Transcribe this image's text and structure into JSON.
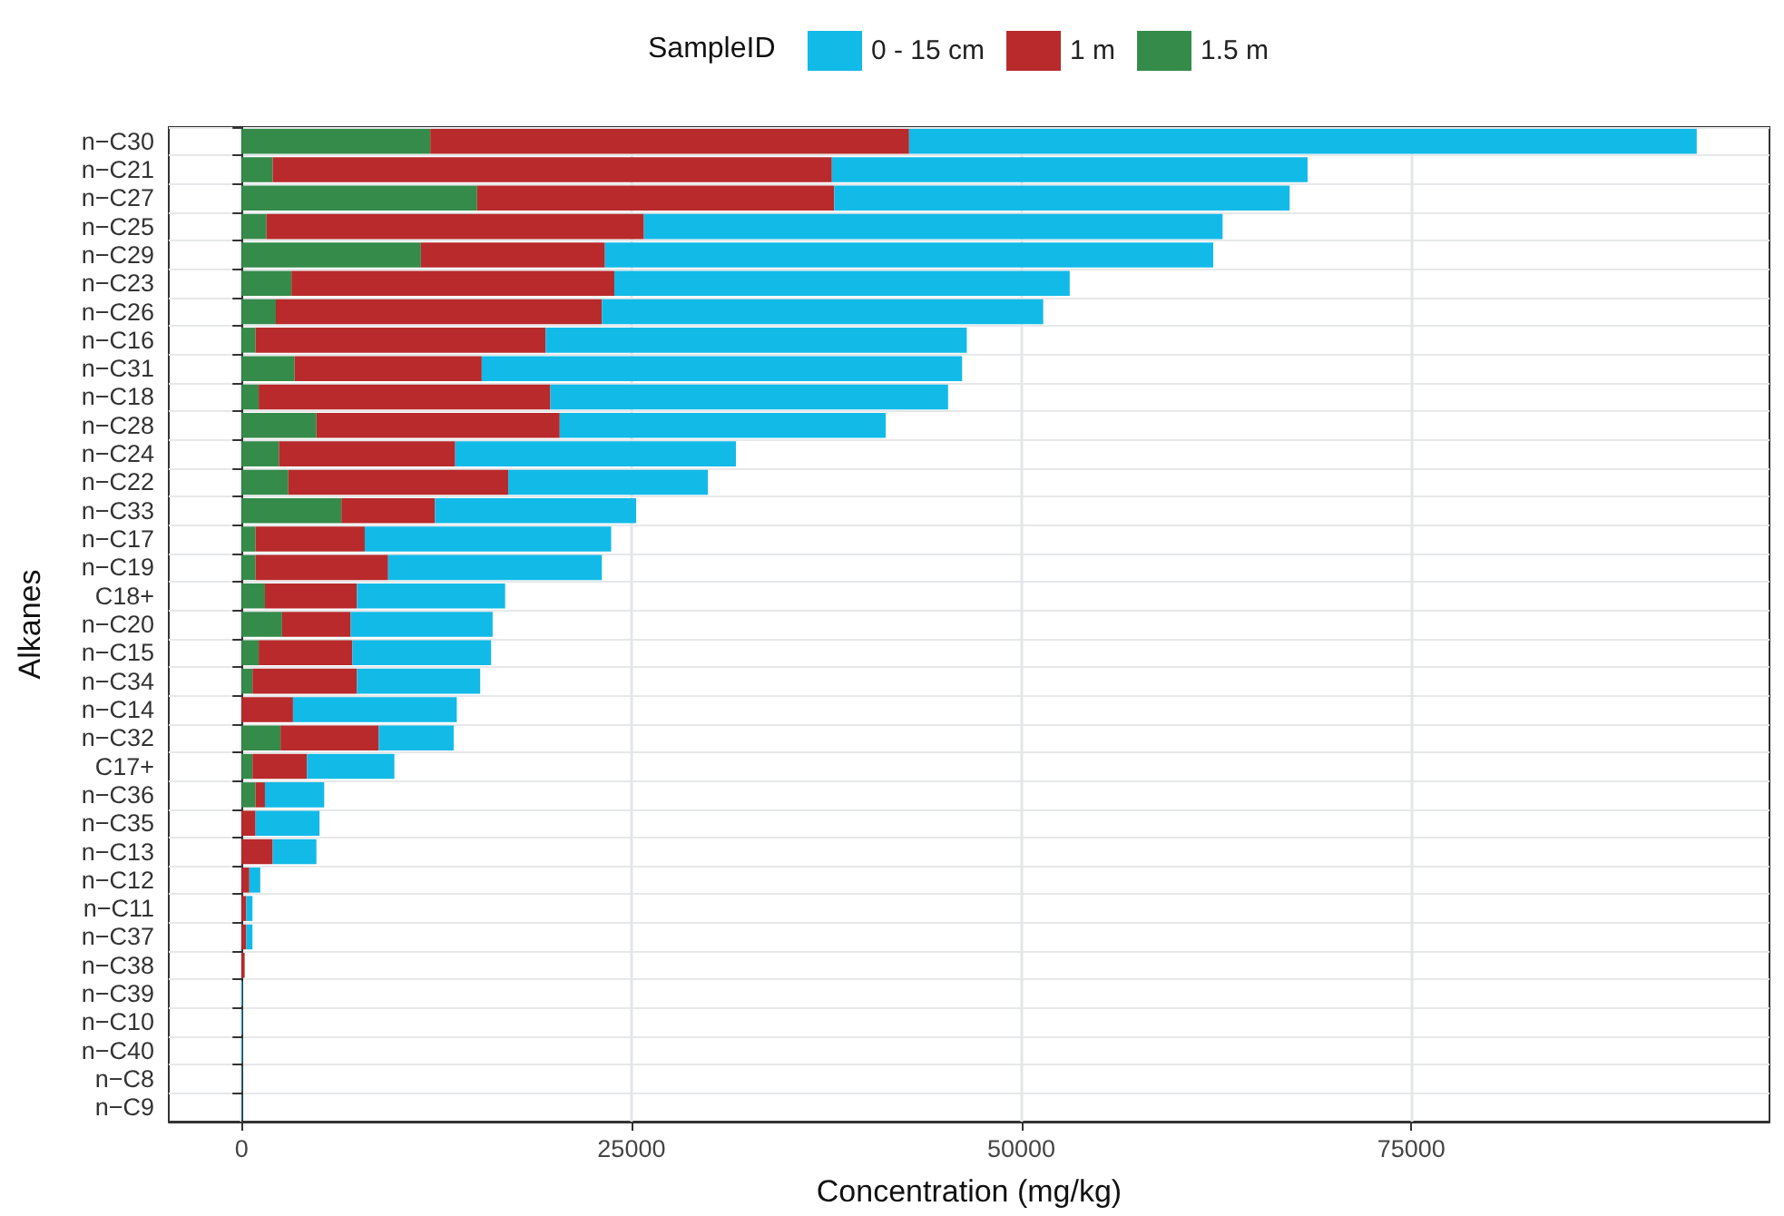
{
  "chart_data": {
    "type": "bar",
    "orientation": "horizontal",
    "stacked": true,
    "xlabel": "Concentration (mg/kg)",
    "ylabel": "Alkanes",
    "legend_title": "SampleID",
    "legend": "top",
    "grid": true,
    "categories": [
      "n−C30",
      "n−C21",
      "n−C27",
      "n−C25",
      "n−C29",
      "n−C23",
      "n−C26",
      "n−C16",
      "n−C31",
      "n−C18",
      "n−C28",
      "n−C24",
      "n−C22",
      "n−C33",
      "n−C17",
      "n−C19",
      "C18+",
      "n−C20",
      "n−C15",
      "n−C34",
      "n−C14",
      "n−C32",
      "C17+",
      "n−C36",
      "n−C35",
      "n−C13",
      "n−C12",
      "n−C11",
      "n−C37",
      "n−C38",
      "n−C39",
      "n−C10",
      "n−C40",
      "n−C8",
      "n−C9"
    ],
    "series": [
      {
        "name": "1.5 m",
        "color": "#358b4a",
        "values": [
          12100,
          2000,
          15100,
          1600,
          11500,
          3200,
          2200,
          900,
          3400,
          1100,
          4800,
          2400,
          3000,
          6400,
          900,
          900,
          1500,
          2600,
          1100,
          700,
          0,
          2500,
          700,
          900,
          0,
          0,
          0,
          0,
          0,
          0,
          0,
          0,
          0,
          0,
          0
        ]
      },
      {
        "name": "1 m",
        "color": "#b82a2b",
        "values": [
          30700,
          35850,
          22900,
          24200,
          11800,
          20700,
          20900,
          18600,
          12000,
          18700,
          15600,
          11300,
          14100,
          6000,
          7000,
          8500,
          5900,
          4400,
          6000,
          6700,
          3300,
          6300,
          3500,
          600,
          900,
          2000,
          500,
          300,
          300,
          200,
          0,
          0,
          0,
          0,
          0
        ]
      },
      {
        "name": "0 - 15 cm",
        "color": "#12bae8",
        "values": [
          50500,
          30500,
          29200,
          37100,
          39000,
          29200,
          28300,
          27000,
          30800,
          25500,
          20900,
          18000,
          12800,
          12900,
          15800,
          13700,
          9500,
          9100,
          8900,
          7900,
          10500,
          4800,
          5600,
          3800,
          4100,
          2800,
          700,
          400,
          400,
          0,
          50,
          50,
          50,
          30,
          30
        ]
      }
    ],
    "xlim": [
      -4665,
      97965
    ],
    "xticks": [
      0,
      25000,
      50000,
      75000
    ]
  }
}
